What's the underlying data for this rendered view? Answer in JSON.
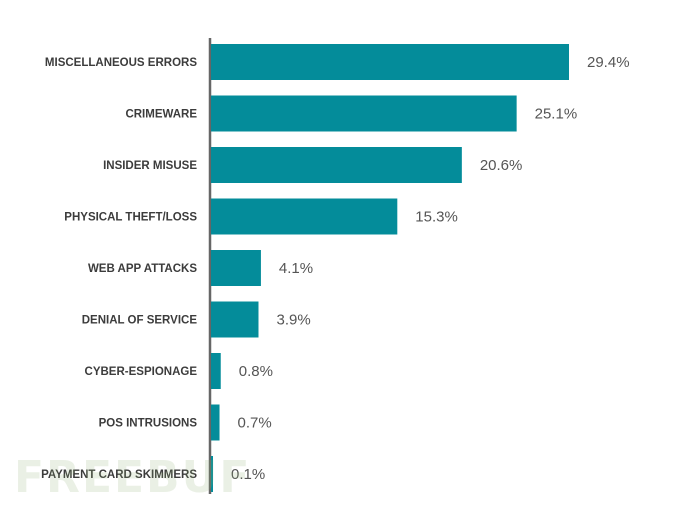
{
  "chart_data": {
    "type": "bar",
    "orientation": "horizontal",
    "categories": [
      "MISCELLANEOUS ERRORS",
      "CRIMEWARE",
      "INSIDER MISUSE",
      "PHYSICAL THEFT/LOSS",
      "WEB APP ATTACKS",
      "DENIAL OF SERVICE",
      "CYBER-ESPIONAGE",
      "POS INTRUSIONS",
      "PAYMENT CARD SKIMMERS"
    ],
    "values": [
      29.4,
      25.1,
      20.6,
      15.3,
      4.1,
      3.9,
      0.8,
      0.7,
      0.1
    ],
    "value_labels": [
      "29.4%",
      "25.1%",
      "20.6%",
      "15.3%",
      "4.1%",
      "3.9%",
      "0.8%",
      "0.7%",
      "0.1%"
    ],
    "xlim": [
      0,
      29.4
    ],
    "grid": false,
    "title": "",
    "xlabel": "",
    "ylabel": ""
  },
  "colors": {
    "bar": "#048c9a",
    "axis": "#666666"
  },
  "watermark": "FREEBUF"
}
